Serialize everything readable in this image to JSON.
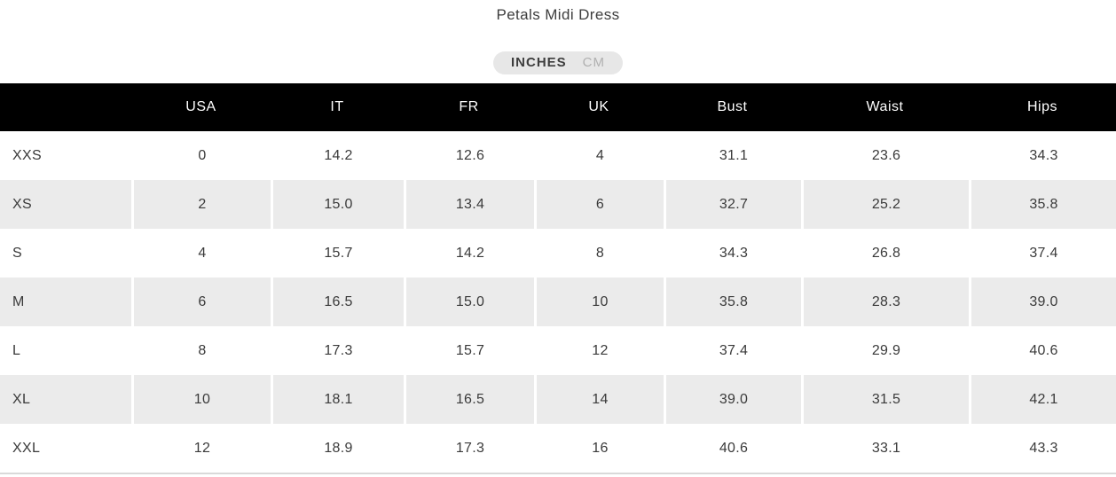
{
  "title": "Petals Midi Dress",
  "unit_toggle": {
    "options": [
      {
        "label": "INCHES",
        "selected": true
      },
      {
        "label": "CM",
        "selected": false
      }
    ]
  },
  "table": {
    "columns": [
      "",
      "USA",
      "IT",
      "FR",
      "UK",
      "Bust",
      "Waist",
      "Hips"
    ],
    "rows": [
      {
        "size": "XXS",
        "values": [
          "0",
          "14.2",
          "12.6",
          "4",
          "31.1",
          "23.6",
          "34.3"
        ]
      },
      {
        "size": "XS",
        "values": [
          "2",
          "15.0",
          "13.4",
          "6",
          "32.7",
          "25.2",
          "35.8"
        ]
      },
      {
        "size": "S",
        "values": [
          "4",
          "15.7",
          "14.2",
          "8",
          "34.3",
          "26.8",
          "37.4"
        ]
      },
      {
        "size": "M",
        "values": [
          "6",
          "16.5",
          "15.0",
          "10",
          "35.8",
          "28.3",
          "39.0"
        ]
      },
      {
        "size": "L",
        "values": [
          "8",
          "17.3",
          "15.7",
          "12",
          "37.4",
          "29.9",
          "40.6"
        ]
      },
      {
        "size": "XL",
        "values": [
          "10",
          "18.1",
          "16.5",
          "14",
          "39.0",
          "31.5",
          "42.1"
        ]
      },
      {
        "size": "XXL",
        "values": [
          "12",
          "18.9",
          "17.3",
          "16",
          "40.6",
          "33.1",
          "43.3"
        ]
      }
    ]
  },
  "colors": {
    "header_bg": "#000000",
    "header_text": "#ffffff",
    "alt_row_bg": "#ebebeb",
    "body_text": "#3a3a3a",
    "toggle_bg": "#e7e7e7",
    "toggle_active_text": "#3d3d3d",
    "toggle_inactive_text": "#b0b0b0",
    "table_bottom_border": "#d9d9d9"
  }
}
